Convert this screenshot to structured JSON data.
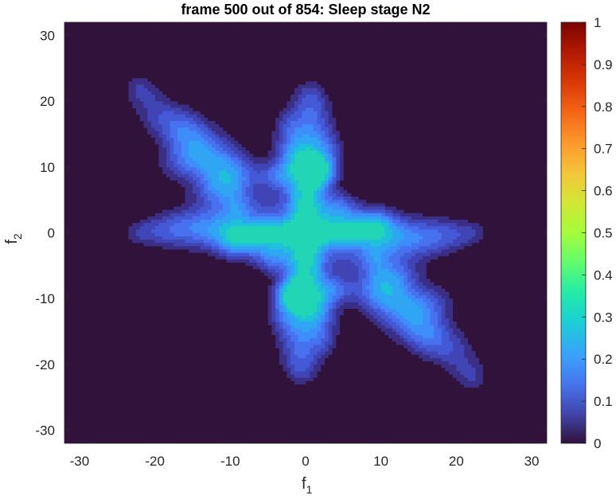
{
  "chart_data": {
    "type": "heatmap",
    "subtype": "filled-contour",
    "title": "frame 500 out of 854: Sleep stage N2",
    "xlabel": "f",
    "xlabel_sub": "1",
    "ylabel": "f",
    "ylabel_sub": "2",
    "xlim": [
      -32,
      32
    ],
    "ylim": [
      -32,
      32
    ],
    "x_ticks": [
      -30,
      -20,
      -10,
      0,
      10,
      20,
      30
    ],
    "y_ticks": [
      -30,
      -20,
      -10,
      0,
      10,
      20,
      30
    ],
    "colorbar": {
      "range": [
        0,
        1
      ],
      "ticks": [
        0,
        0.1,
        0.2,
        0.3,
        0.4,
        0.5,
        0.6,
        0.7,
        0.8,
        0.9,
        1
      ],
      "tick_labels": [
        "0",
        "0.1",
        "0.2",
        "0.3",
        "0.4",
        "0.5",
        "0.6",
        "0.7",
        "0.8",
        "0.9",
        "1"
      ],
      "colormap": "turbo"
    },
    "levels": [
      {
        "level": 0.0,
        "color": "#30123b"
      },
      {
        "level": 0.05,
        "color": "#3a2f85"
      },
      {
        "level": 0.08,
        "color": "#4044b4"
      },
      {
        "level": 0.11,
        "color": "#4459d6"
      },
      {
        "level": 0.14,
        "color": "#4771ef"
      },
      {
        "level": 0.17,
        "color": "#3f8cfb"
      },
      {
        "level": 0.2,
        "color": "#2fa5f4"
      },
      {
        "level": 0.24,
        "color": "#1fc0dc"
      },
      {
        "level": 0.28,
        "color": "#22d5b5"
      }
    ],
    "features": [
      {
        "name": "center",
        "x": 0,
        "y": 0,
        "value": 0.22
      },
      {
        "name": "peak-right",
        "x": 5,
        "y": 0,
        "value": 0.27
      },
      {
        "name": "peak-left",
        "x": -5,
        "y": 0,
        "value": 0.27
      },
      {
        "name": "peak-up",
        "x": 0,
        "y": 5,
        "value": 0.27
      },
      {
        "name": "peak-down",
        "x": 0,
        "y": -5,
        "value": 0.27
      },
      {
        "name": "peak-ul",
        "x": 2,
        "y": 9,
        "value": 0.26
      },
      {
        "name": "peak-ul2",
        "x": -1,
        "y": 10,
        "value": 0.23
      },
      {
        "name": "peak-lr",
        "x": -2,
        "y": -9,
        "value": 0.26
      },
      {
        "name": "peak-lr2",
        "x": 1,
        "y": -10,
        "value": 0.23
      },
      {
        "name": "peak-r",
        "x": 9,
        "y": 1,
        "value": 0.25
      },
      {
        "name": "peak-l",
        "x": -9,
        "y": -1,
        "value": 0.25
      },
      {
        "name": "arm-ne",
        "x": 11,
        "y": -7,
        "value": 0.16
      },
      {
        "name": "arm-sw",
        "x": -11,
        "y": 7,
        "value": 0.16
      },
      {
        "name": "arm-far-nw",
        "x": -17,
        "y": 15,
        "value": 0.11
      },
      {
        "name": "arm-far-se",
        "x": 17,
        "y": -15,
        "value": 0.11
      }
    ]
  }
}
